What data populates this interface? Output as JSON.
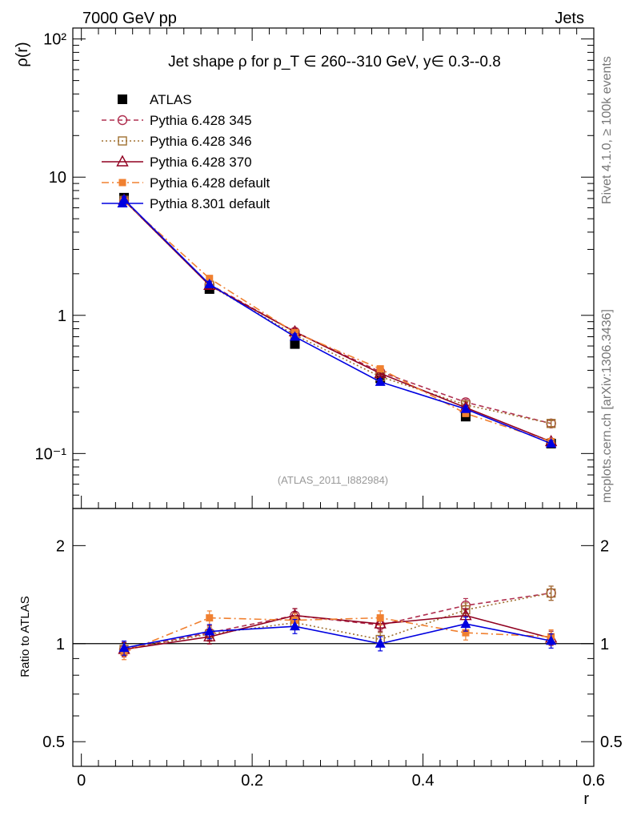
{
  "header": {
    "left": "7000 GeV pp",
    "right": "Jets",
    "side_top": "Rivet 4.1.0, ≥ 100k events",
    "side_bottom": "mcplots.cern.ch [arXiv:1306.3436]"
  },
  "chart_data": [
    {
      "type": "line",
      "title": "Jet shape ρ for p_T ∈ 260--310 GeV, y∈ 0.3--0.8",
      "ylabel": "ρ(r)",
      "xlabel": "r",
      "yscale": "log",
      "ylim": [
        0.04,
        120
      ],
      "xlim": [
        -0.01,
        0.6
      ],
      "ytick_labels": [
        "10⁻¹",
        "1",
        "10",
        "10²"
      ],
      "watermark": "(ATLAS_2011_I882984)",
      "legend_position": "top-left",
      "x": [
        0.05,
        0.15,
        0.25,
        0.35,
        0.45,
        0.55
      ],
      "series": [
        {
          "name": "ATLAS",
          "color": "#000000",
          "values": [
            7.1,
            1.55,
            0.62,
            0.35,
            0.185,
            0.118
          ]
        },
        {
          "name": "Pythia 6.428 345",
          "color": "#b03050",
          "values": [
            6.8,
            1.68,
            0.76,
            0.39,
            0.235,
            0.165
          ]
        },
        {
          "name": "Pythia 6.428 346",
          "color": "#a07030",
          "values": [
            6.8,
            1.65,
            0.72,
            0.36,
            0.225,
            0.165
          ]
        },
        {
          "name": "Pythia 6.428 370",
          "color": "#900020",
          "values": [
            6.8,
            1.65,
            0.76,
            0.38,
            0.215,
            0.122
          ]
        },
        {
          "name": "Pythia 6.428 default",
          "color": "#f08030",
          "values": [
            6.7,
            1.85,
            0.75,
            0.41,
            0.195,
            0.122
          ]
        },
        {
          "name": "Pythia 8.301 default",
          "color": "#0000e0",
          "values": [
            6.9,
            1.68,
            0.7,
            0.33,
            0.21,
            0.118
          ]
        }
      ]
    },
    {
      "type": "line",
      "title": "",
      "ylabel": "Ratio to ATLAS",
      "xlabel": "r",
      "yscale": "log",
      "ylim": [
        0.42,
        2.6
      ],
      "xlim": [
        -0.01,
        0.6
      ],
      "ytick_labels": [
        "0.5",
        "1",
        "2"
      ],
      "xtick_labels": [
        "0",
        "0.2",
        "0.4",
        "0.6"
      ],
      "reference_line": 1,
      "x": [
        0.05,
        0.15,
        0.25,
        0.35,
        0.45,
        0.55
      ],
      "series": [
        {
          "name": "Pythia 6.428 345",
          "color": "#b03050",
          "values": [
            0.96,
            1.08,
            1.22,
            1.14,
            1.31,
            1.43
          ]
        },
        {
          "name": "Pythia 6.428 346",
          "color": "#a07030",
          "values": [
            0.96,
            1.07,
            1.16,
            1.03,
            1.27,
            1.43
          ]
        },
        {
          "name": "Pythia 6.428 370",
          "color": "#900020",
          "values": [
            0.96,
            1.05,
            1.22,
            1.15,
            1.22,
            1.04
          ]
        },
        {
          "name": "Pythia 6.428 default",
          "color": "#f08030",
          "values": [
            0.94,
            1.2,
            1.18,
            1.2,
            1.08,
            1.05
          ]
        },
        {
          "name": "Pythia 8.301 default",
          "color": "#0000e0",
          "values": [
            0.97,
            1.09,
            1.13,
            1.0,
            1.15,
            1.02
          ]
        }
      ]
    }
  ]
}
